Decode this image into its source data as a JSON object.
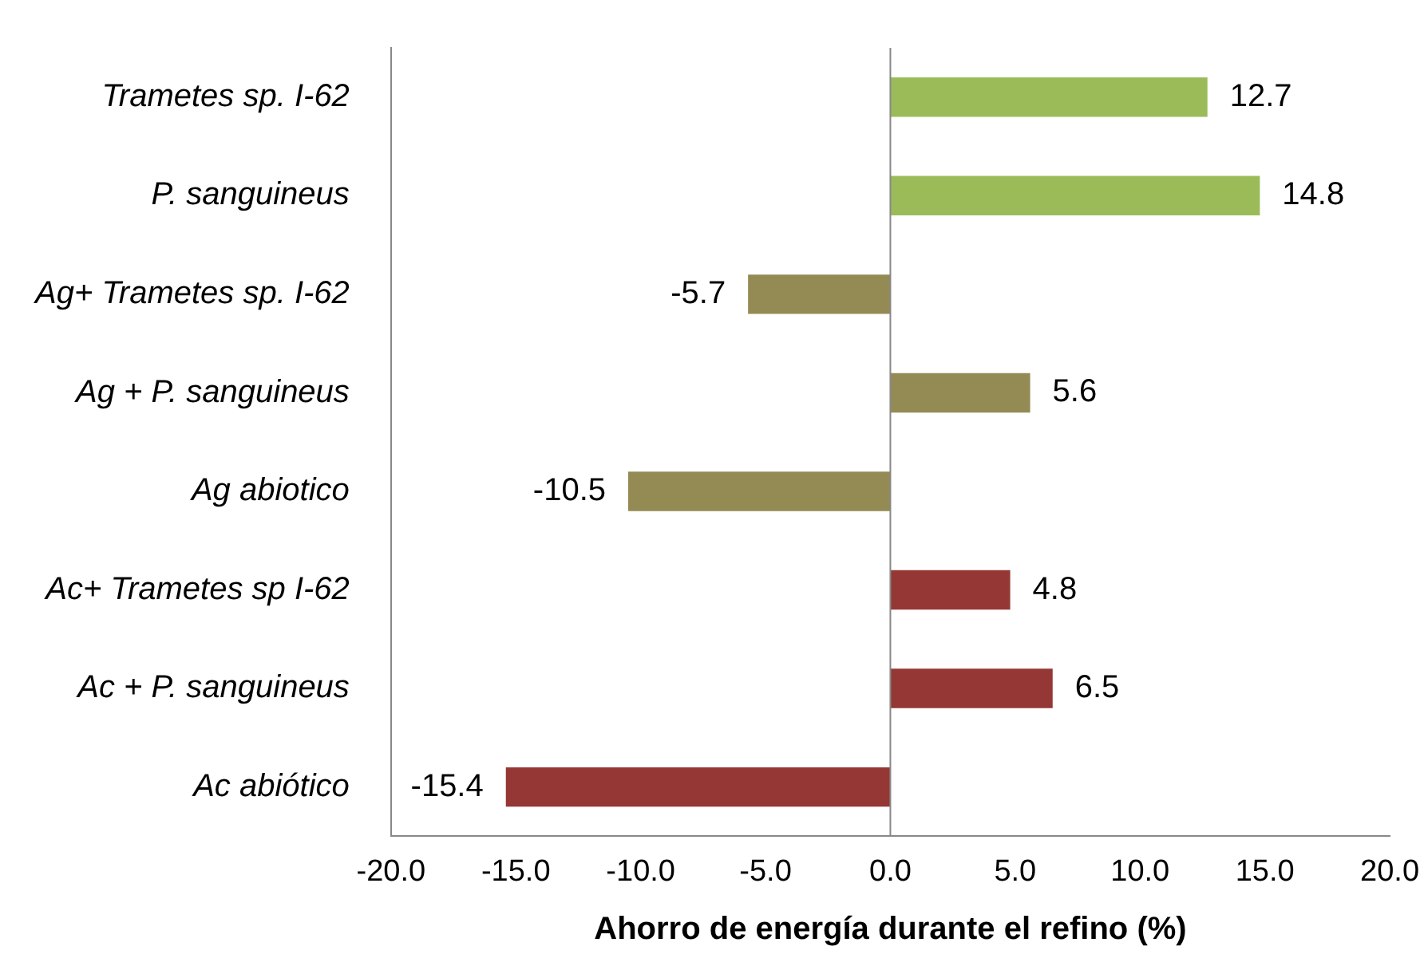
{
  "chart_data": {
    "type": "bar",
    "orientation": "horizontal",
    "xlabel": "Ahorro de energía durante el refino (%)",
    "categories": [
      "Trametes sp. I-62",
      "P. sanguineus",
      "Ag+ Trametes sp. I-62",
      "Ag + P. sanguineus",
      "Ag abiotico",
      "Ac+ Trametes sp I-62",
      "Ac + P. sanguineus",
      "Ac abiótico"
    ],
    "values": [
      12.7,
      14.8,
      -5.7,
      5.6,
      -10.5,
      4.8,
      6.5,
      -15.4
    ],
    "colors": [
      "#9bbb59",
      "#9bbb59",
      "#948a54",
      "#948a54",
      "#948a54",
      "#953735",
      "#953735",
      "#953735"
    ],
    "xlim": [
      -20,
      20
    ],
    "xticks": [
      {
        "value": -20,
        "label": "-20.0"
      },
      {
        "value": -15,
        "label": "-15.0"
      },
      {
        "value": -10,
        "label": "-10.0"
      },
      {
        "value": -5,
        "label": "-5.0"
      },
      {
        "value": 0,
        "label": "0.0"
      },
      {
        "value": 5,
        "label": "5.0"
      },
      {
        "value": 10,
        "label": "10.0"
      },
      {
        "value": 15,
        "label": "15.0"
      },
      {
        "value": 20,
        "label": "20.0"
      }
    ],
    "ref_lines": [
      {
        "axis": "x",
        "value": 0,
        "color": "#888888"
      }
    ],
    "data_labels": true,
    "grid": false,
    "legend": false
  }
}
